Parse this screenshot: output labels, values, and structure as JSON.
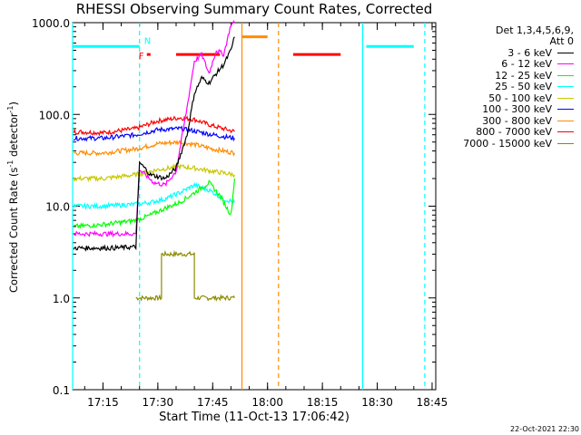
{
  "chart_data": {
    "type": "line",
    "title": "RHESSI Observing Summary Count Rates, Corrected",
    "xlabel": "Start Time (11-Oct-13 17:06:42)",
    "ylabel_main": "Corrected Count Rate (s",
    "ylabel_sup1": "-1",
    "ylabel_mid": " detector",
    "ylabel_sup2": "-1",
    "ylabel_end": ")",
    "yscale": "log",
    "ylim": [
      0.1,
      1000.0
    ],
    "xlim": [
      "17:06:42",
      "18:46:00"
    ],
    "x_ticks": [
      "17:15",
      "17:30",
      "17:45",
      "18:00",
      "18:15",
      "18:30",
      "18:45"
    ],
    "y_ticks": [
      "0.1",
      "1.0",
      "10.0",
      "100.0",
      "1000.0"
    ],
    "legend_header": [
      "Det 1,3,4,5,6,9,",
      "Att 0"
    ],
    "legend_placement": "right",
    "series": [
      {
        "name": "3 - 6 keV",
        "color": "#000000",
        "x": [
          "17:07",
          "17:12",
          "17:18",
          "17:24",
          "17:25",
          "17:28",
          "17:32",
          "17:35",
          "17:38",
          "17:40",
          "17:42",
          "17:44",
          "17:46",
          "17:48",
          "17:50",
          "17:51"
        ],
        "values": [
          3.5,
          3.5,
          3.5,
          3.6,
          30,
          22,
          20,
          26,
          60,
          170,
          250,
          220,
          280,
          350,
          500,
          700
        ]
      },
      {
        "name": "6 - 12 keV",
        "color": "#ff00ff",
        "x": [
          "17:07",
          "17:15",
          "17:24",
          "17:25",
          "17:29",
          "17:32",
          "17:35",
          "17:38",
          "17:40",
          "17:42",
          "17:44",
          "17:46",
          "17:48",
          "17:50",
          "17:51"
        ],
        "values": [
          5,
          5,
          5,
          25,
          18,
          17,
          24,
          120,
          380,
          450,
          280,
          500,
          450,
          950,
          1000
        ]
      },
      {
        "name": "12 - 25 keV",
        "color": "#00ff00",
        "x": [
          "17:07",
          "17:15",
          "17:24",
          "17:28",
          "17:32",
          "17:36",
          "17:40",
          "17:44",
          "17:47",
          "17:50",
          "17:51"
        ],
        "values": [
          6,
          6.3,
          7,
          8,
          9.5,
          11,
          14,
          18,
          13,
          8,
          20
        ]
      },
      {
        "name": "25 - 50 keV",
        "color": "#00ffff",
        "x": [
          "17:07",
          "17:15",
          "17:24",
          "17:28",
          "17:32",
          "17:36",
          "17:40",
          "17:44",
          "17:48",
          "17:51"
        ],
        "values": [
          10,
          10,
          10.5,
          11,
          12,
          14,
          17,
          15,
          12,
          11
        ]
      },
      {
        "name": "50 - 100 keV",
        "color": "#c8c800",
        "x": [
          "17:07",
          "17:15",
          "17:24",
          "17:30",
          "17:36",
          "17:40",
          "17:45",
          "17:51"
        ],
        "values": [
          20,
          20,
          22,
          25,
          27,
          26,
          24,
          22
        ]
      },
      {
        "name": "100 - 300 keV",
        "color": "#0000ff",
        "x": [
          "17:07",
          "17:15",
          "17:24",
          "17:30",
          "17:36",
          "17:40",
          "17:45",
          "17:51"
        ],
        "values": [
          55,
          55,
          60,
          68,
          70,
          66,
          60,
          55
        ]
      },
      {
        "name": "300 - 800 keV",
        "color": "#ff8c00",
        "x": [
          "17:07",
          "17:15",
          "17:24",
          "17:30",
          "17:36",
          "17:40",
          "17:45",
          "17:51"
        ],
        "values": [
          38,
          38,
          42,
          48,
          50,
          47,
          42,
          38
        ]
      },
      {
        "name": "800 - 7000 keV",
        "color": "#ff0000",
        "x": [
          "17:07",
          "17:15",
          "17:24",
          "17:30",
          "17:36",
          "17:40",
          "17:45",
          "17:51"
        ],
        "values": [
          65,
          63,
          70,
          85,
          92,
          88,
          75,
          65
        ]
      },
      {
        "name": "7000 - 15000 keV",
        "color": "#8b8b00",
        "x": [
          "17:24",
          "17:31",
          "17:31",
          "17:40",
          "17:40",
          "17:51"
        ],
        "values": [
          1,
          1,
          3,
          3,
          1,
          1
        ]
      }
    ],
    "flag_bars": [
      {
        "label": "N",
        "color": "#00ffff",
        "x_start": "17:06:42",
        "x_end": "17:25",
        "level": 550
      },
      {
        "label": "F",
        "color": "#ff0000",
        "x_start": "17:27",
        "x_end": "17:28",
        "level": 450
      },
      {
        "label": "",
        "color": "#ff0000",
        "x_start": "17:35",
        "x_end": "17:47",
        "level": 450
      },
      {
        "label": "",
        "color": "#ff8c00",
        "x_start": "17:53",
        "x_end": "18:00",
        "level": 700
      },
      {
        "label": "",
        "color": "#ff0000",
        "x_start": "18:07",
        "x_end": "18:20",
        "level": 450
      },
      {
        "label": "",
        "color": "#00ffff",
        "x_start": "18:27",
        "x_end": "18:40",
        "level": 550
      }
    ],
    "vertical_markers": [
      {
        "x": "17:06:42",
        "color": "#00ffff",
        "style": "solid"
      },
      {
        "x": "17:25",
        "color": "#00ffff",
        "style": "dashed"
      },
      {
        "x": "17:53",
        "color": "#ff8c00",
        "style": "solid"
      },
      {
        "x": "18:03",
        "color": "#ff8c00",
        "style": "dashed"
      },
      {
        "x": "18:26",
        "color": "#00ffff",
        "style": "solid"
      },
      {
        "x": "18:43",
        "color": "#00ffff",
        "style": "dashed"
      }
    ]
  },
  "timestamp": "22-Oct-2021 22:30"
}
